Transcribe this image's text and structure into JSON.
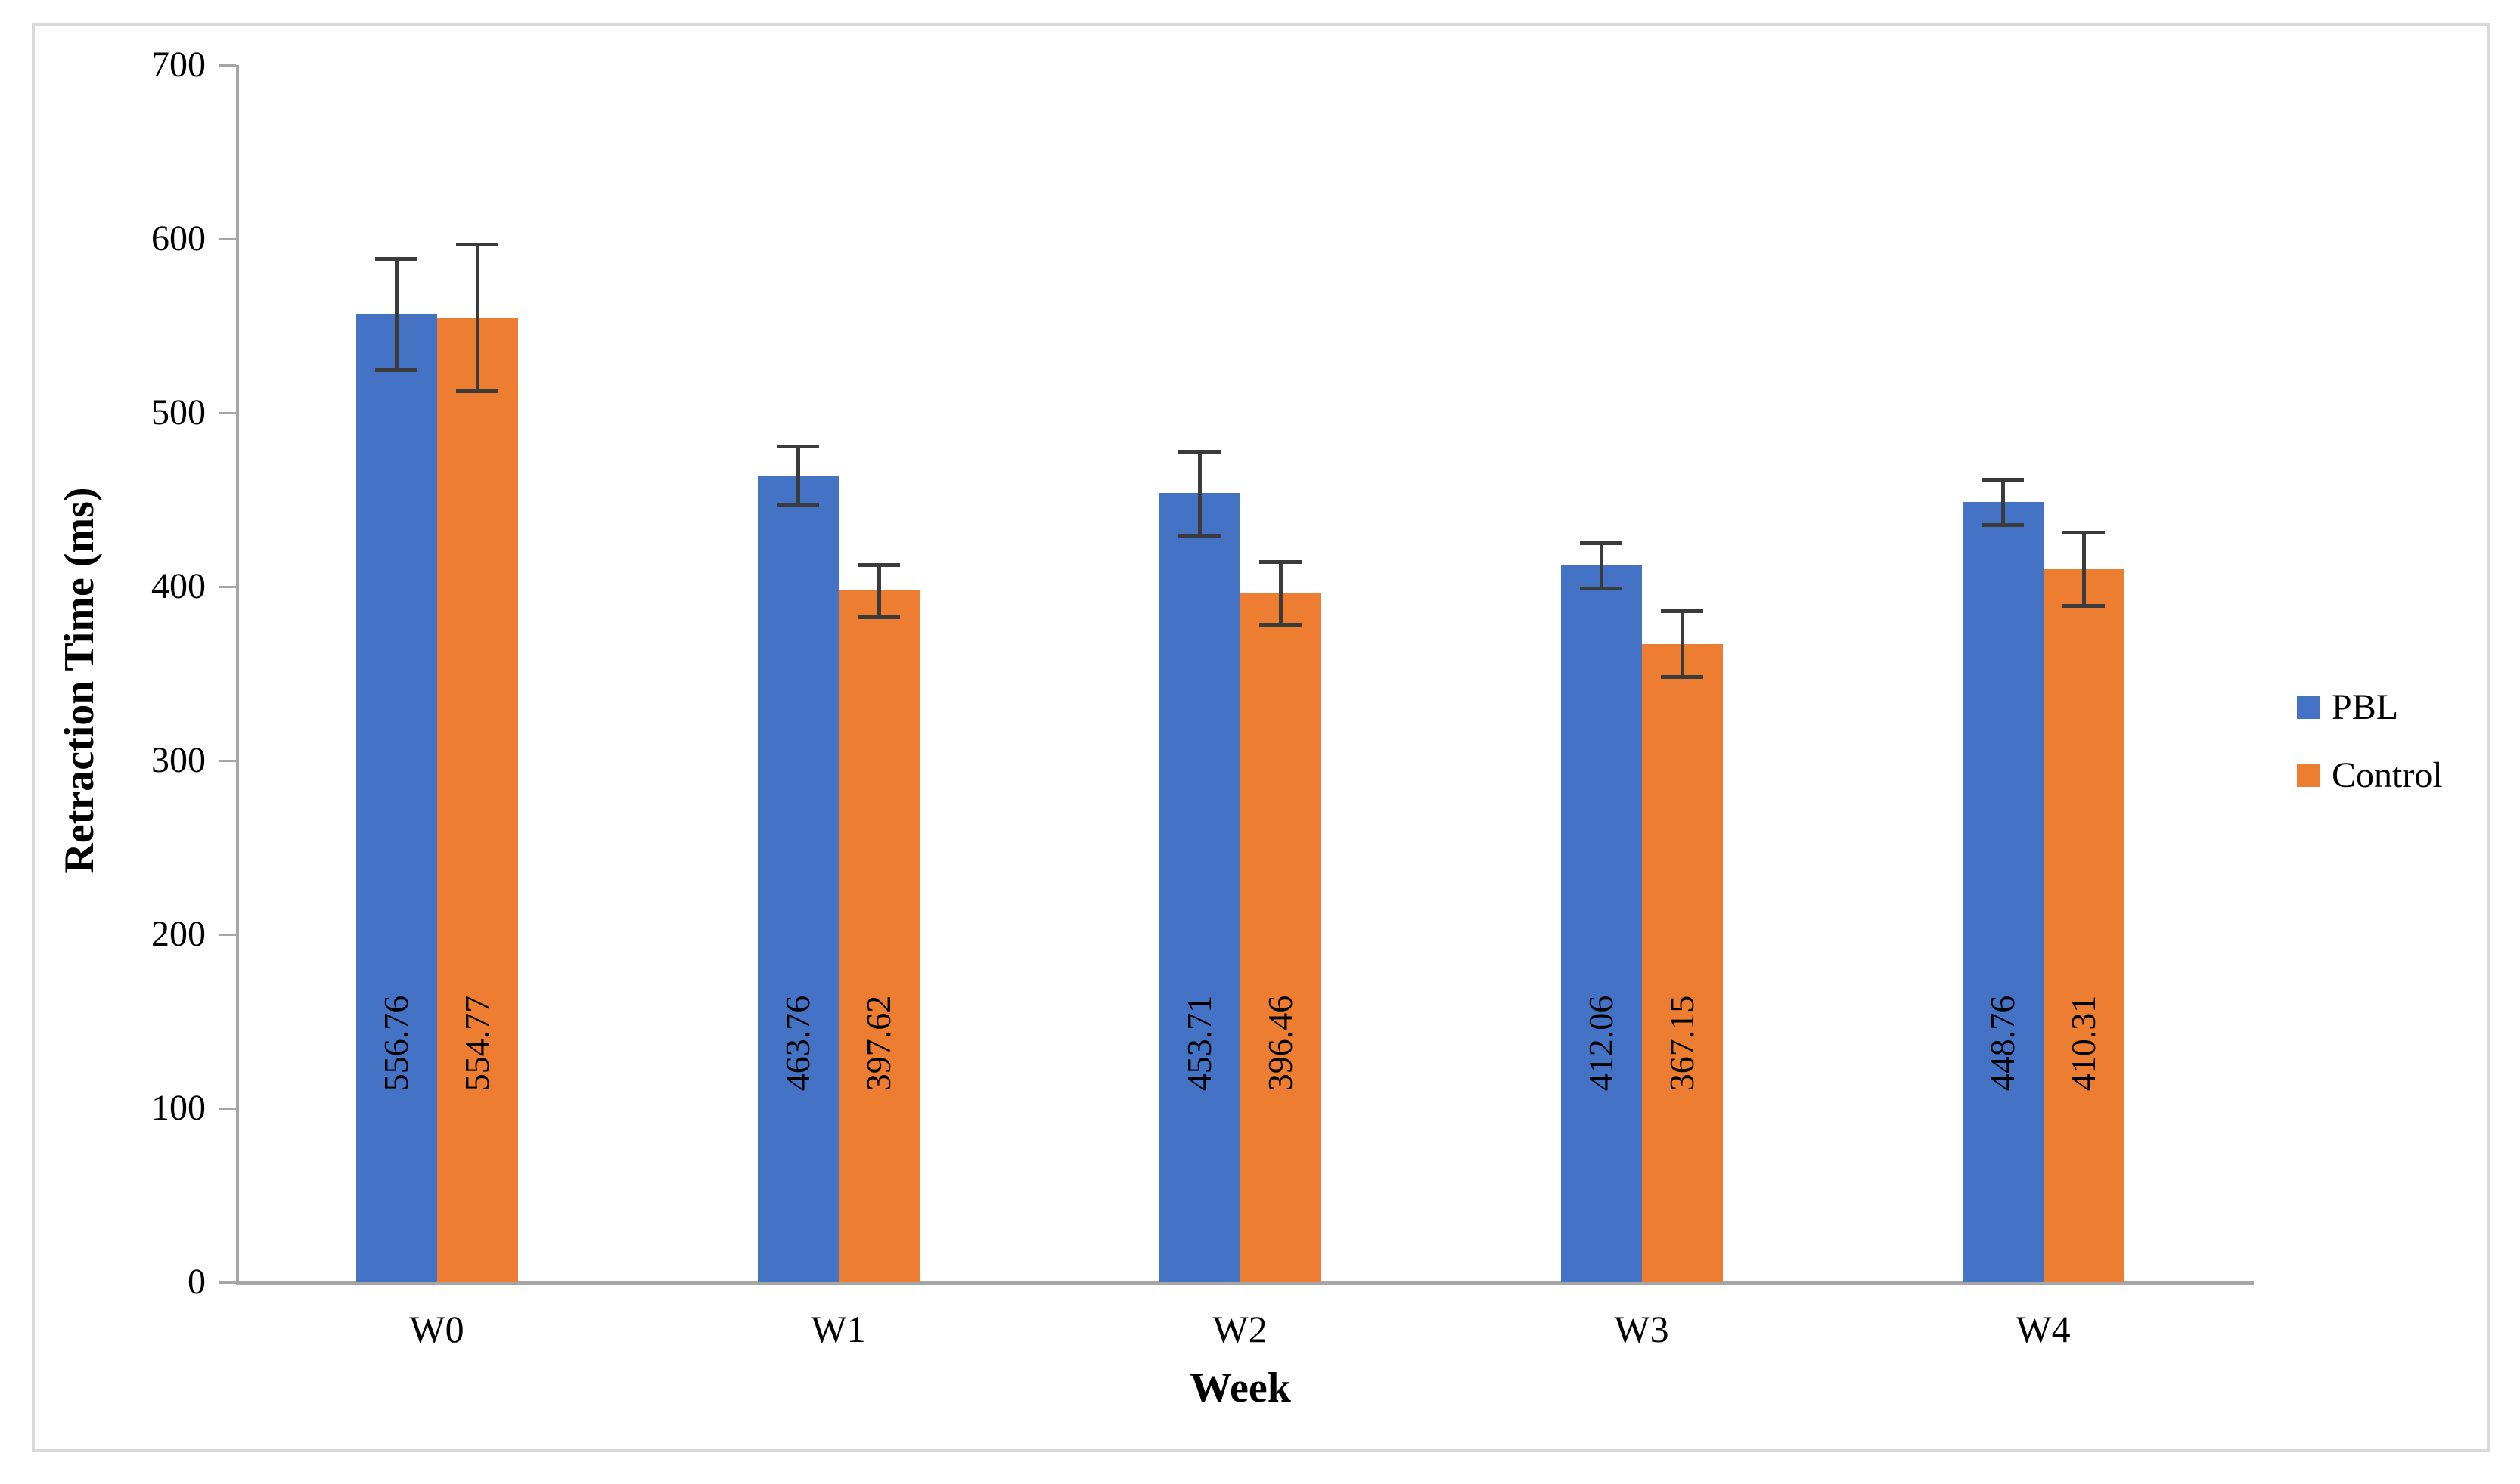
{
  "chart_data": {
    "type": "bar",
    "title": "",
    "categories": [
      "W0",
      "W1",
      "W2",
      "W3",
      "W4"
    ],
    "series": [
      {
        "name": "PBL",
        "color": "#4472C4",
        "values": [
          556.76,
          463.76,
          453.71,
          412.06,
          448.76
        ],
        "errors": [
          32,
          17,
          24,
          13,
          13
        ]
      },
      {
        "name": "Control",
        "color": "#ED7D31",
        "values": [
          554.77,
          397.62,
          396.46,
          367.15,
          410.31
        ],
        "errors": [
          42,
          15,
          18,
          19,
          21
        ]
      }
    ],
    "bar_labels_visible": true,
    "bar_label_decimals": 2,
    "error_bars_visible": true,
    "xlabel": "Week",
    "ylabel": "Retraction Time (ms)",
    "ylim": [
      0,
      700
    ],
    "yticks": [
      0,
      100,
      200,
      300,
      400,
      500,
      600,
      700
    ],
    "grid": false,
    "legend_position": "right"
  },
  "legend": {
    "items": [
      {
        "label": "PBL",
        "color": "#4472C4"
      },
      {
        "label": "Control",
        "color": "#ED7D31"
      }
    ]
  },
  "colors": {
    "background": "#FFFFFF",
    "figure_border": "#D9D9D9",
    "axis": "#A6A6A6",
    "error_bar": "#3B3B3B",
    "text": "#000000"
  }
}
